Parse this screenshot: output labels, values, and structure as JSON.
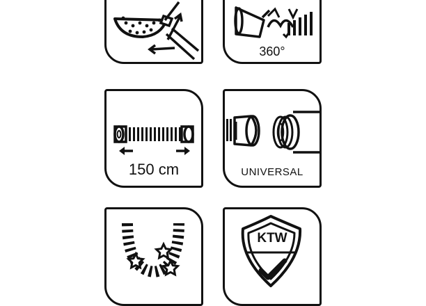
{
  "tiles": {
    "rain": {
      "caption": ""
    },
    "swivel": {
      "caption": "360°"
    },
    "hose": {
      "caption": "150 cm"
    },
    "universal": {
      "caption": "UNIVERSAL"
    },
    "bend": {
      "caption": ""
    },
    "ktw": {
      "caption": "KTW"
    }
  },
  "colors": {
    "ink": "#111111",
    "background": "#ffffff"
  },
  "icons": [
    "rain-shower-icon",
    "swivel-joint-icon",
    "hose-length-icon",
    "universal-connector-icon",
    "flexible-hose-icon",
    "ktw-shield-icon"
  ]
}
